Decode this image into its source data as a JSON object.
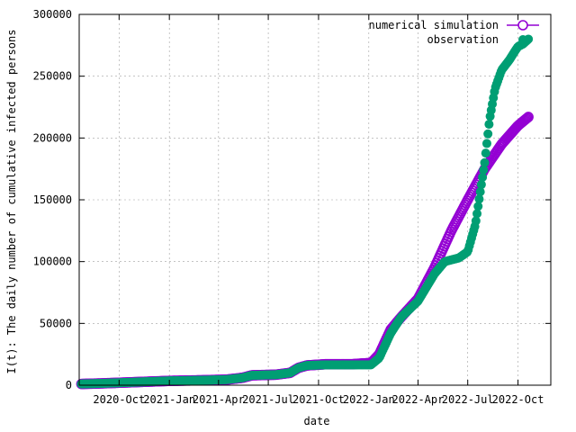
{
  "chart_data": {
    "type": "scatter",
    "xlabel": "date",
    "ylabel": "I(t): The daily number of cumulative infected persons",
    "x_range": [
      "2020-07-20",
      "2022-11-30"
    ],
    "ylim": [
      0,
      300000
    ],
    "y_ticks": [
      0,
      50000,
      100000,
      150000,
      200000,
      250000,
      300000
    ],
    "y_tick_labels": [
      "0",
      "50000",
      "100000",
      "150000",
      "200000",
      "250000",
      "300000"
    ],
    "x_ticks": [
      "2020-10-01",
      "2021-01-01",
      "2021-04-01",
      "2021-07-01",
      "2021-10-01",
      "2022-01-01",
      "2022-04-01",
      "2022-07-01",
      "2022-10-01"
    ],
    "x_tick_labels": [
      "2020-Oct",
      "2021-Jan",
      "2021-Apr",
      "2021-Jul",
      "2021-Oct",
      "2022-Jan",
      "2022-Apr",
      "2022-Jul",
      "2022-Oct"
    ],
    "grid": true,
    "legend_position": "top-right",
    "series": [
      {
        "name": "numerical simulation",
        "color": "#9400d3",
        "marker": "open-circle",
        "x": [
          "2020-07-24",
          "2020-09-01",
          "2020-11-01",
          "2021-01-01",
          "2021-03-01",
          "2021-04-15",
          "2021-05-15",
          "2021-06-01",
          "2021-07-15",
          "2021-08-10",
          "2021-08-25",
          "2021-09-10",
          "2021-10-15",
          "2021-12-01",
          "2022-01-05",
          "2022-01-20",
          "2022-02-10",
          "2022-03-01",
          "2022-04-01",
          "2022-05-01",
          "2022-06-01",
          "2022-07-01",
          "2022-08-01",
          "2022-09-01",
          "2022-10-01",
          "2022-10-20"
        ],
        "y": [
          1000,
          1500,
          2500,
          3500,
          4000,
          4500,
          6000,
          8000,
          8500,
          10000,
          14000,
          16000,
          17000,
          17000,
          18000,
          25000,
          45000,
          55000,
          70000,
          95000,
          125000,
          150000,
          175000,
          195000,
          210000,
          217000
        ]
      },
      {
        "name": "observation",
        "color": "#009e73",
        "marker": "filled-circle",
        "x": [
          "2020-07-24",
          "2020-09-01",
          "2020-11-01",
          "2021-01-01",
          "2021-03-01",
          "2021-04-15",
          "2021-05-15",
          "2021-06-01",
          "2021-07-15",
          "2021-08-10",
          "2021-08-25",
          "2021-09-10",
          "2021-10-15",
          "2021-12-01",
          "2022-01-05",
          "2022-01-20",
          "2022-02-10",
          "2022-03-01",
          "2022-04-01",
          "2022-05-01",
          "2022-05-20",
          "2022-06-15",
          "2022-07-01",
          "2022-07-15",
          "2022-08-01",
          "2022-08-10",
          "2022-08-20",
          "2022-09-01",
          "2022-09-15",
          "2022-09-25",
          "2022-10-01",
          "2022-10-10",
          "2022-10-20"
        ],
        "y": [
          1000,
          1500,
          2500,
          3500,
          4000,
          4500,
          6000,
          8000,
          8500,
          10000,
          14000,
          16000,
          16500,
          16500,
          16500,
          22000,
          42000,
          55000,
          68000,
          90000,
          100000,
          103000,
          108000,
          130000,
          180000,
          215000,
          240000,
          255000,
          263000,
          270000,
          274000,
          276000,
          280000
        ]
      }
    ]
  }
}
